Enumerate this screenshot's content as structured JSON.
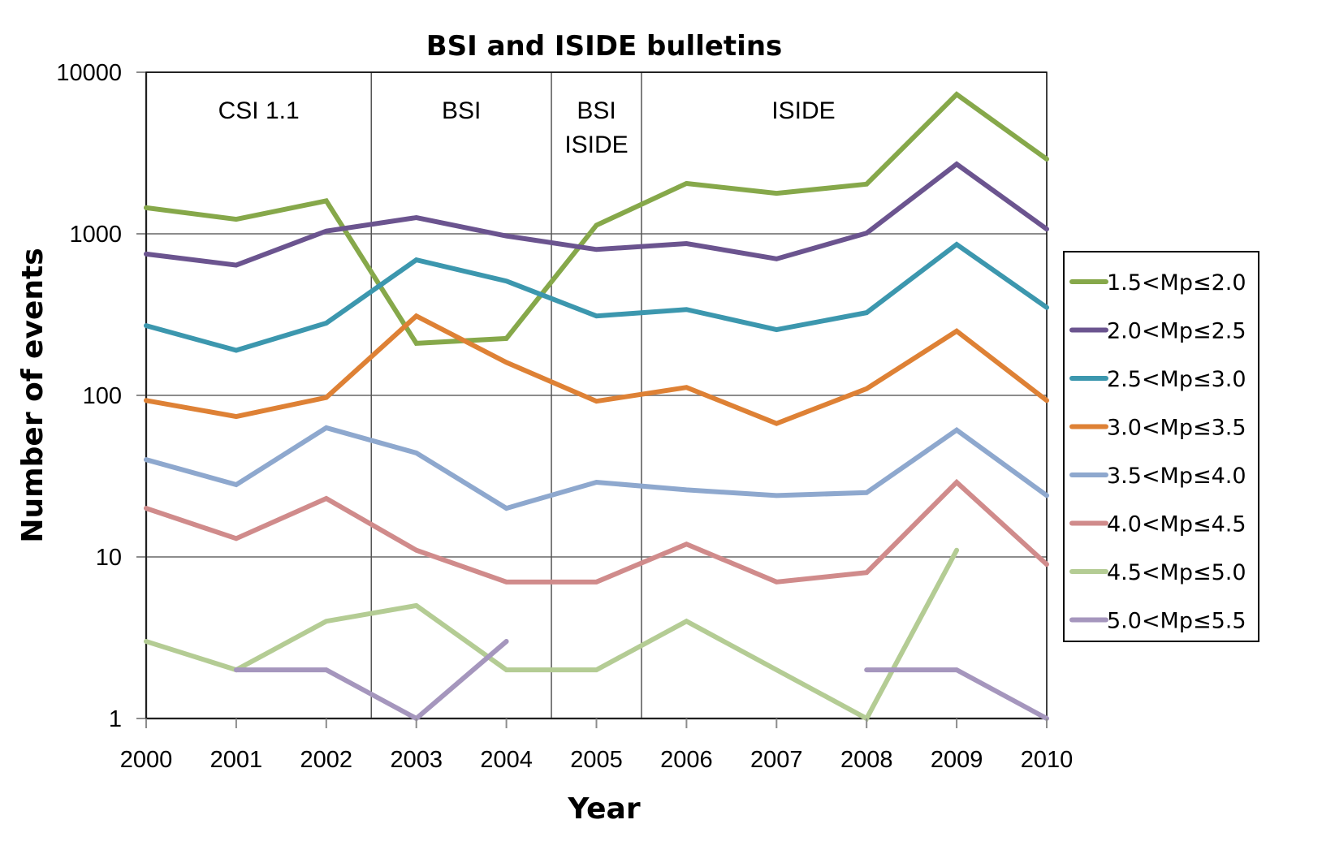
{
  "chart_data": {
    "type": "line",
    "title": "BSI and ISIDE bulletins",
    "xlabel": "Year",
    "ylabel": "Number of events",
    "yscale": "log",
    "ylim": [
      1,
      10000
    ],
    "yticks": [
      "1",
      "10",
      "100",
      "1000",
      "10000"
    ],
    "ytick_values": [
      1,
      10,
      100,
      1000,
      10000
    ],
    "x": [
      "2000",
      "2001",
      "2002",
      "2003",
      "2004",
      "2005",
      "2006",
      "2007",
      "2008",
      "2009",
      "2010"
    ],
    "grid": "horizontal",
    "legend_position": "right",
    "regions": [
      {
        "label_lines": [
          "CSI 1.1"
        ],
        "from": 2000,
        "to": 2002.5
      },
      {
        "label_lines": [
          "BSI"
        ],
        "from": 2002.5,
        "to": 2004.5
      },
      {
        "label_lines": [
          "BSI",
          "ISIDE"
        ],
        "from": 2004.5,
        "to": 2005.5
      },
      {
        "label_lines": [
          "ISIDE"
        ],
        "from": 2005.5,
        "to": 2010
      }
    ],
    "series": [
      {
        "name": "1.5<Mp≤2.0",
        "color": "#86a84a",
        "values": [
          1450,
          1230,
          1600,
          210,
          225,
          1130,
          2050,
          1780,
          2030,
          7300,
          2900
        ]
      },
      {
        "name": "2.0<Mp≤2.5",
        "color": "#6b548f",
        "values": [
          750,
          640,
          1040,
          1260,
          970,
          800,
          870,
          700,
          1010,
          2700,
          1070
        ]
      },
      {
        "name": "2.5<Mp≤3.0",
        "color": "#3c97ae",
        "values": [
          270,
          190,
          280,
          690,
          510,
          310,
          340,
          255,
          325,
          860,
          350
        ]
      },
      {
        "name": "3.0<Mp≤3.5",
        "color": "#de8135",
        "values": [
          93,
          74,
          97,
          310,
          160,
          92,
          112,
          67,
          110,
          250,
          93
        ]
      },
      {
        "name": "3.5<Mp≤4.0",
        "color": "#8ea8ce",
        "values": [
          40,
          28,
          63,
          44,
          20,
          29,
          26,
          24,
          25,
          61,
          24
        ]
      },
      {
        "name": "4.0<Mp≤4.5",
        "color": "#d08b8b",
        "values": [
          20,
          13,
          23,
          11,
          7,
          7,
          12,
          7,
          8,
          29,
          9
        ]
      },
      {
        "name": "4.5<Mp≤5.0",
        "color": "#b4cc94",
        "values": [
          3,
          2,
          4,
          5,
          2,
          2,
          4,
          2,
          1,
          11,
          null
        ]
      },
      {
        "name": "5.0<Mp≤5.5",
        "color": "#a596bd",
        "values": [
          null,
          2,
          2,
          1,
          3,
          null,
          null,
          null,
          2,
          2,
          1
        ]
      }
    ]
  }
}
